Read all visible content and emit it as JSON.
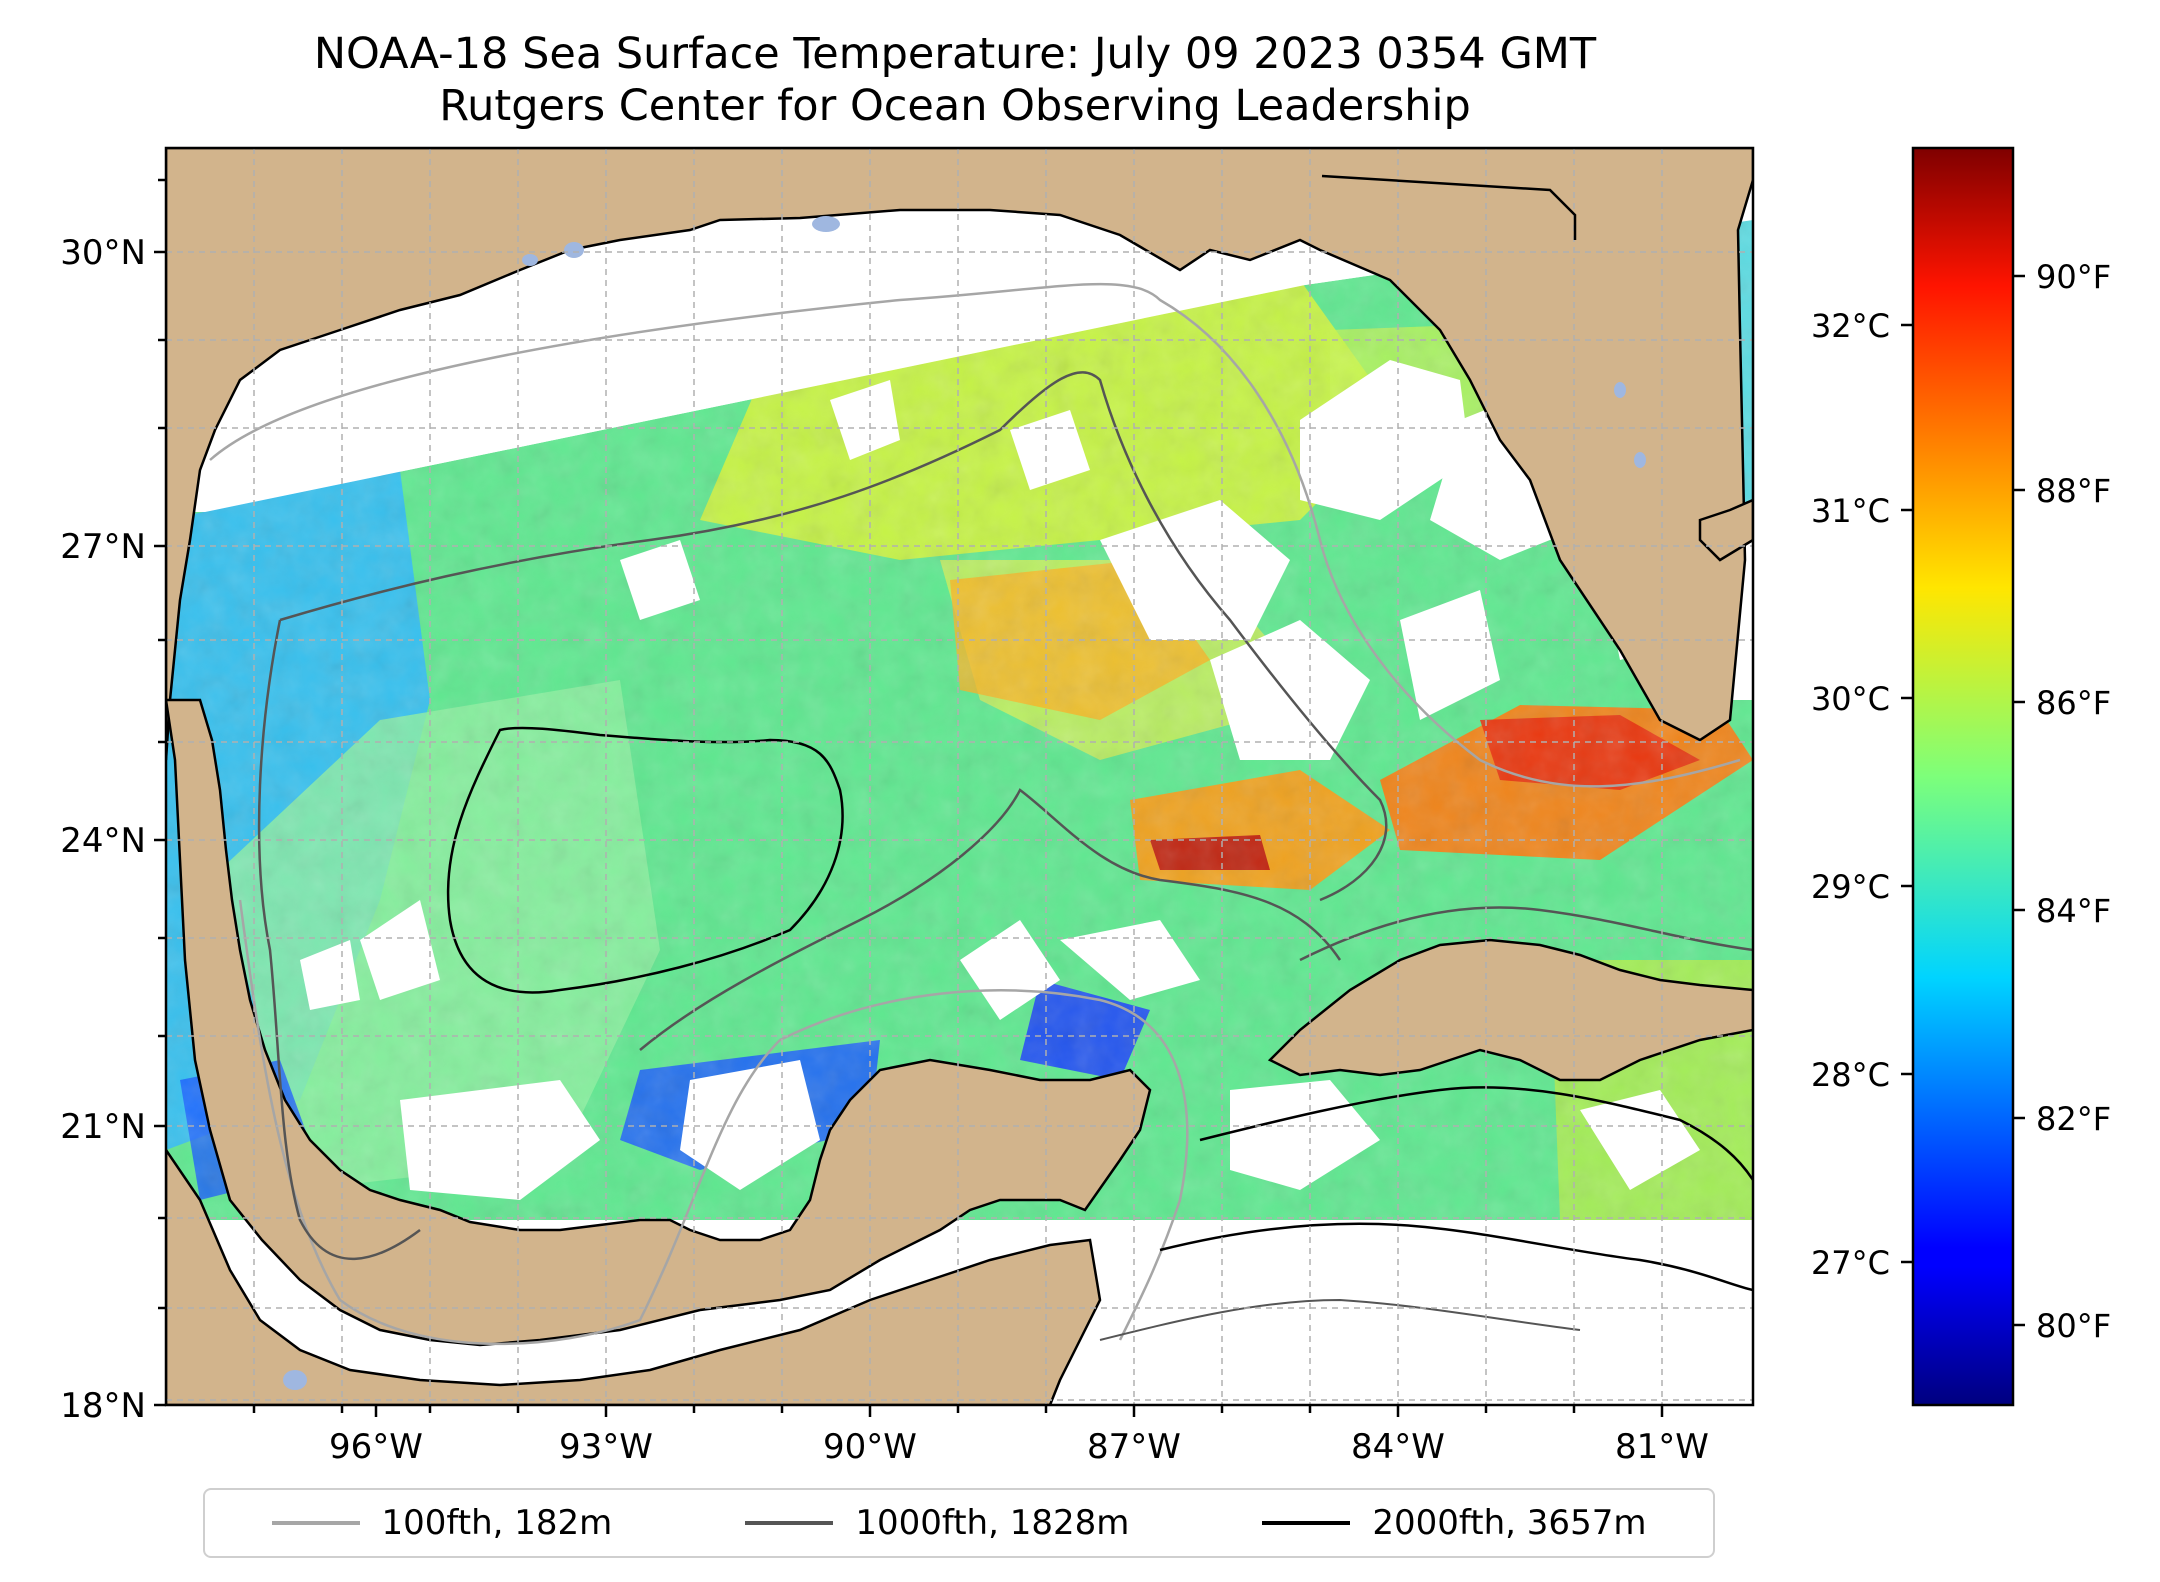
{
  "title": {
    "line1": "NOAA-18 Sea Surface Temperature: July 09 2023 0354 GMT",
    "line2": "Rutgers Center for Ocean Observing Leadership"
  },
  "map": {
    "lat_labels": [
      "30°N",
      "27°N",
      "24°N",
      "21°N",
      "18°N"
    ],
    "lon_labels": [
      "96°W",
      "93°W",
      "90°W",
      "87°W",
      "84°W",
      "81°W"
    ],
    "land_color": "#d2b48c",
    "missing_color": "#ffffff"
  },
  "colorbar": {
    "colormap": "jet",
    "celsius_labels": [
      "32°C",
      "31°C",
      "30°C",
      "29°C",
      "28°C",
      "27°C"
    ],
    "fahrenheit_labels": [
      "90°F",
      "88°F",
      "86°F",
      "84°F",
      "82°F",
      "80°F"
    ]
  },
  "legend": {
    "items": [
      {
        "label": "100fth, 182m",
        "color": "#a6a6a6"
      },
      {
        "label": "1000fth, 1828m",
        "color": "#555555"
      },
      {
        "label": "2000fth, 3657m",
        "color": "#000000"
      }
    ]
  }
}
